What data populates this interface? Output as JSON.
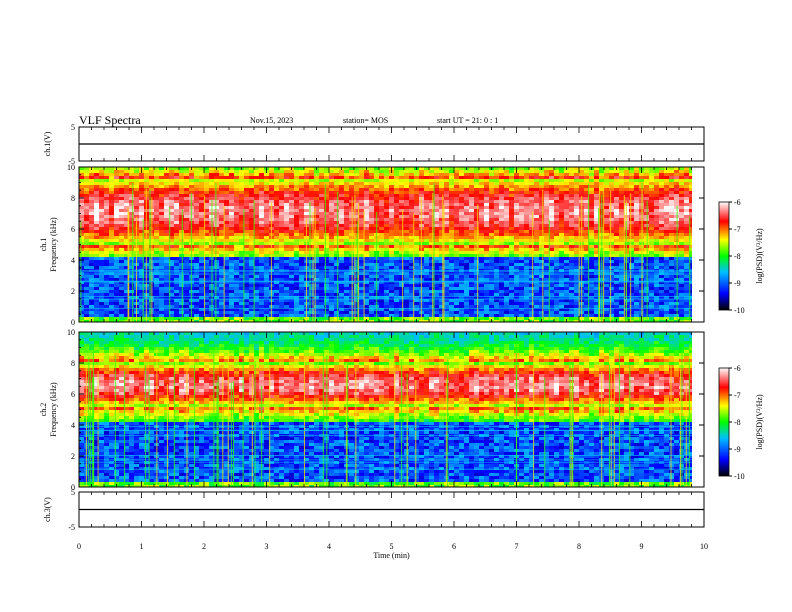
{
  "header": {
    "title": "VLF Spectra",
    "date": "Nov.15, 2023",
    "station": "station= MOS",
    "start": "start  UT =   21: 0  : 1"
  },
  "colors": {
    "colormap": [
      "#000000",
      "#0000ff",
      "#00c0ff",
      "#00ff00",
      "#ffff00",
      "#ff0000",
      "#ffffff"
    ]
  },
  "chart_data": [
    {
      "type": "line",
      "panel": "ch1-waveform",
      "ylabel": "ch.1(V)",
      "ylim": [
        -5,
        5
      ],
      "yticks": [
        "5",
        "-5"
      ],
      "x": [
        0,
        10
      ],
      "y": [
        0,
        0
      ]
    },
    {
      "type": "heatmap",
      "panel": "ch1-spectrogram",
      "ylabel_lines": [
        "ch.1",
        "Frequency (kHz)"
      ],
      "ylim": [
        0,
        10
      ],
      "yticks": [
        "0",
        "2",
        "4",
        "6",
        "8",
        "10"
      ],
      "xlim": [
        0,
        10
      ],
      "band_khz": [
        5.0,
        9.3
      ],
      "colorbar": {
        "label": "log(PSD)(V²/Hz)",
        "range": [
          -10,
          -6
        ],
        "ticks": [
          "-6",
          "-7",
          "-8",
          "-9",
          "-10"
        ]
      }
    },
    {
      "type": "heatmap",
      "panel": "ch2-spectrogram",
      "ylabel_lines": [
        "ch.2",
        "Frequency (kHz)"
      ],
      "ylim": [
        0,
        10
      ],
      "yticks": [
        "0",
        "2",
        "4",
        "6",
        "8",
        "10"
      ],
      "xlim": [
        0,
        10
      ],
      "band_khz": [
        5.2,
        8.0
      ],
      "colorbar": {
        "label": "log(PSD)(V²/Hz)",
        "range": [
          -10,
          -6
        ],
        "ticks": [
          "-6",
          "-7",
          "-8",
          "-9",
          "-10"
        ]
      }
    },
    {
      "type": "line",
      "panel": "ch3-waveform",
      "ylabel": "ch.3(V)",
      "ylim": [
        -5,
        5
      ],
      "yticks": [
        "5",
        "-5"
      ],
      "x": [
        0,
        10
      ],
      "y": [
        0,
        0
      ]
    }
  ],
  "xaxis": {
    "label": "Time (min)",
    "range": [
      0,
      10
    ],
    "ticks": [
      "0",
      "1",
      "2",
      "3",
      "4",
      "5",
      "6",
      "7",
      "8",
      "9",
      "10"
    ]
  }
}
